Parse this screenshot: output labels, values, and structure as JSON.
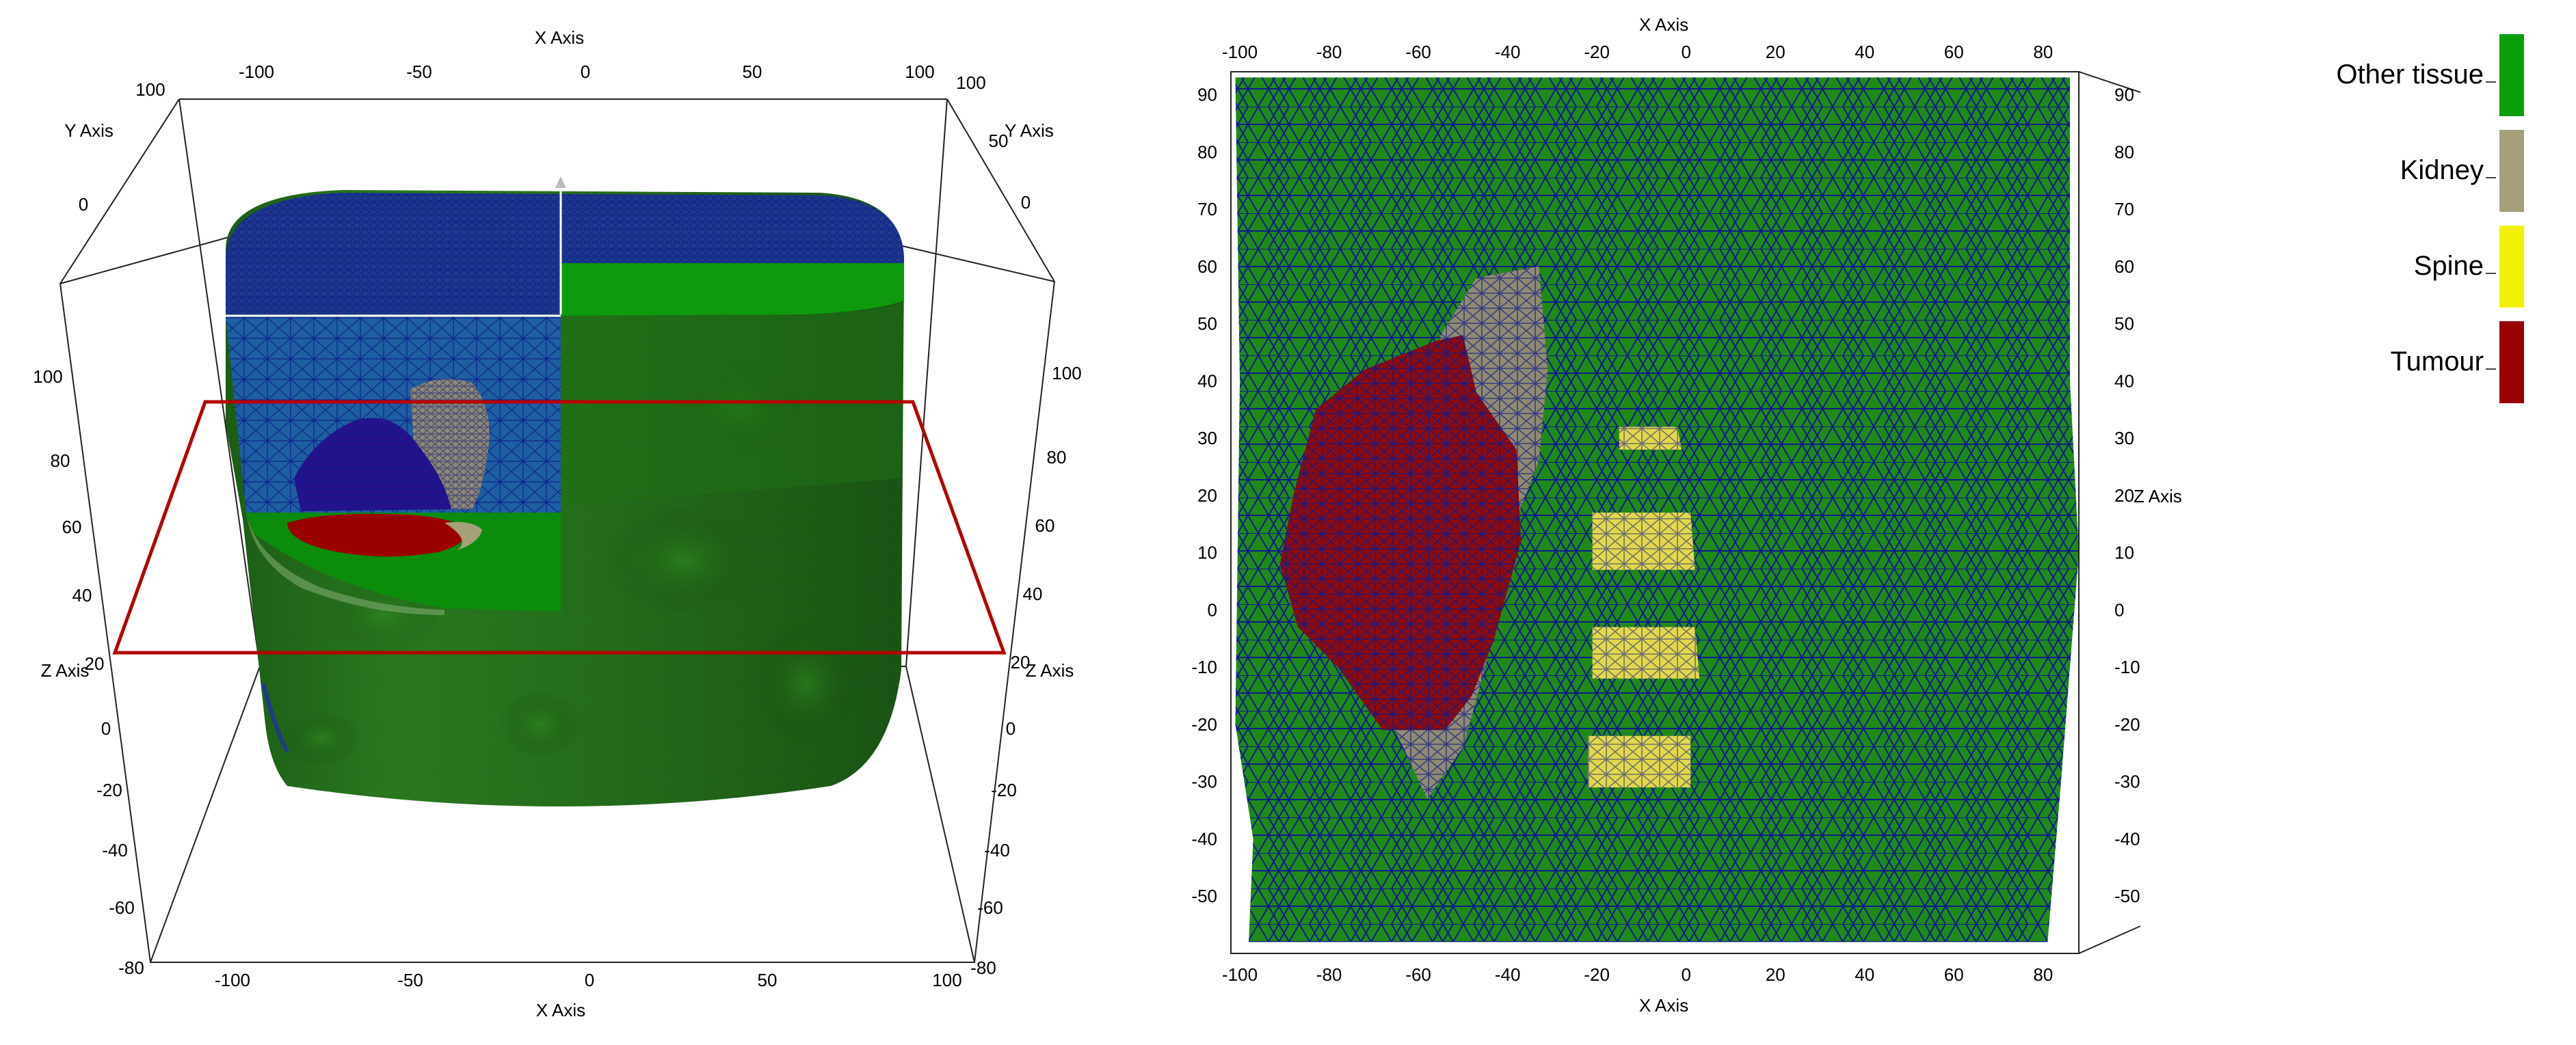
{
  "views": {
    "left": {
      "x_axis_title": "X Axis",
      "y_axis_title": "Y Axis",
      "z_axis_title": "Z Axis",
      "x_ticks": [
        "-100",
        "-50",
        "0",
        "50",
        "100"
      ],
      "y_ticks_left": [
        "100",
        "0"
      ],
      "y_ticks_right": [
        "100",
        "50",
        "0"
      ],
      "z_ticks_left": [
        "100",
        "80",
        "60",
        "40",
        "20",
        "0",
        "-20",
        "-40",
        "-60",
        "-80"
      ],
      "z_ticks_right": [
        "100",
        "80",
        "60",
        "40",
        "20",
        "0",
        "-20",
        "-40",
        "-60",
        "-80"
      ],
      "slice_plane_color": "#b40000"
    },
    "right": {
      "x_axis_title": "X Axis",
      "z_axis_title": "Z Axis",
      "x_ticks": [
        "-100",
        "-80",
        "-60",
        "-40",
        "-20",
        "0",
        "20",
        "40",
        "60",
        "80"
      ],
      "z_ticks": [
        "90",
        "80",
        "70",
        "60",
        "50",
        "40",
        "30",
        "20",
        "10",
        "0",
        "-10",
        "-20",
        "-30",
        "-40",
        "-50"
      ],
      "x_range": [
        -102,
        88
      ],
      "z_range": [
        -60,
        94
      ]
    }
  },
  "legend": {
    "items": [
      {
        "label": "Other tissue",
        "color": "#0a9e0a"
      },
      {
        "label": "Kidney",
        "color": "#a3a07a"
      },
      {
        "label": "Spine",
        "color": "#f2f200"
      },
      {
        "label": "Tumour",
        "color": "#990000"
      }
    ]
  },
  "colors": {
    "tissue_green": "#1f8a1a",
    "mesh_blue": "#101b8c",
    "kidney": "#8f8a70",
    "spine": "#e3d84a",
    "tumour": "#8f0a0a"
  }
}
